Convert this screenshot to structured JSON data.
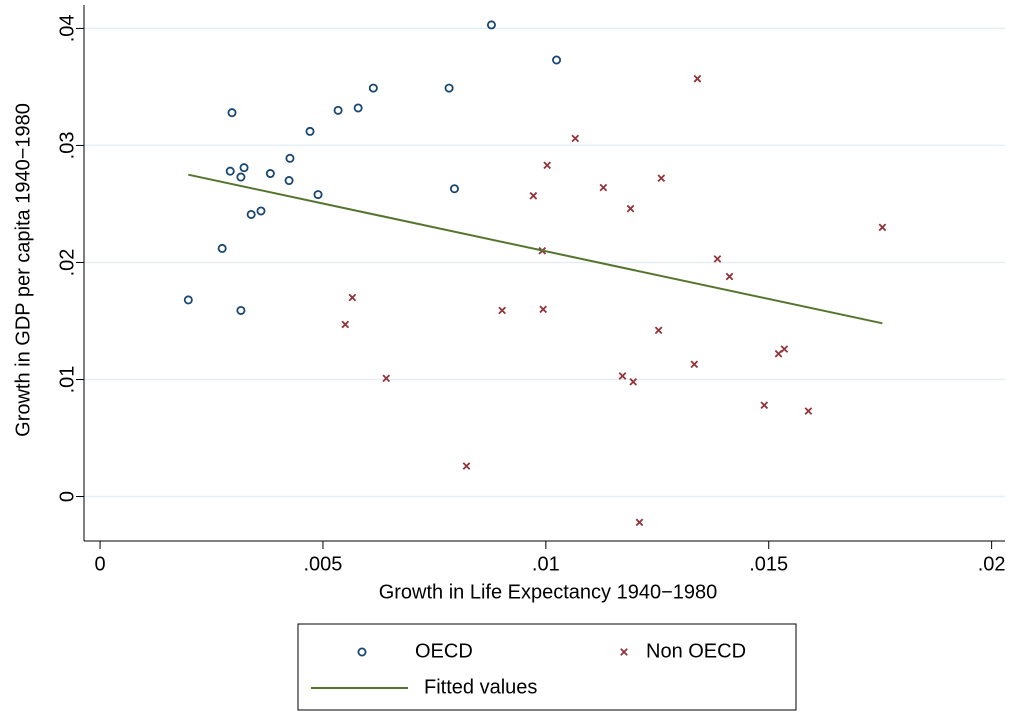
{
  "chart_data": {
    "type": "scatter",
    "x_label": "Growth in Life Expectancy 1940−1980",
    "y_label": "Growth in GDP per capita 1940−1980",
    "xlim": [
      -0.00036,
      0.0203
    ],
    "ylim": [
      -0.0038,
      0.042
    ],
    "xticks": [
      {
        "value": 0,
        "label": "0"
      },
      {
        "value": 0.005,
        "label": ".005"
      },
      {
        "value": 0.01,
        "label": ".01"
      },
      {
        "value": 0.015,
        "label": ".015"
      },
      {
        "value": 0.02,
        "label": ".02"
      }
    ],
    "yticks": [
      {
        "value": 0,
        "label": "0"
      },
      {
        "value": 0.01,
        "label": ".01"
      },
      {
        "value": 0.02,
        "label": ".02"
      },
      {
        "value": 0.03,
        "label": ".03"
      },
      {
        "value": 0.04,
        "label": ".04"
      }
    ],
    "grid": true,
    "legend": "bottom",
    "series": [
      {
        "name": "OECD",
        "type": "scatter",
        "marker": "circle",
        "color": "#1a476f",
        "x": [
          0.00198,
          0.00274,
          0.00296,
          0.00292,
          0.00316,
          0.00323,
          0.00316,
          0.00339,
          0.00361,
          0.00382,
          0.00424,
          0.00426,
          0.00471,
          0.00489,
          0.00534,
          0.00579,
          0.00613,
          0.00783,
          0.00795,
          0.00878,
          0.01024
        ],
        "values": [
          0.0168,
          0.0212,
          0.0328,
          0.0278,
          0.0273,
          0.0281,
          0.0159,
          0.0241,
          0.0244,
          0.0276,
          0.027,
          0.0289,
          0.0312,
          0.0258,
          0.033,
          0.0332,
          0.0349,
          0.0349,
          0.0263,
          0.0403,
          0.0373
        ]
      },
      {
        "name": "Non OECD",
        "type": "scatter",
        "marker": "x",
        "color": "#90353b",
        "x": [
          0.0055,
          0.00566,
          0.00642,
          0.00822,
          0.00902,
          0.00972,
          0.00992,
          0.00994,
          0.01003,
          0.01066,
          0.01129,
          0.01172,
          0.0119,
          0.01196,
          0.0121,
          0.01253,
          0.01259,
          0.01333,
          0.0134,
          0.01385,
          0.01412,
          0.0149,
          0.01522,
          0.01535,
          0.01589,
          0.01755
        ],
        "values": [
          0.0147,
          0.017,
          0.0101,
          0.0026,
          0.0159,
          0.0257,
          0.021,
          0.016,
          0.0283,
          0.0306,
          0.0264,
          0.0103,
          0.0246,
          0.0098,
          -0.0022,
          0.0142,
          0.0272,
          0.0113,
          0.0357,
          0.0203,
          0.0188,
          0.0078,
          0.0122,
          0.0126,
          0.0073,
          0.023
        ]
      },
      {
        "name": "Fitted values",
        "type": "line",
        "color": "#55752f",
        "x": [
          0.00198,
          0.01755
        ],
        "values": [
          0.0275,
          0.0148
        ]
      }
    ]
  }
}
